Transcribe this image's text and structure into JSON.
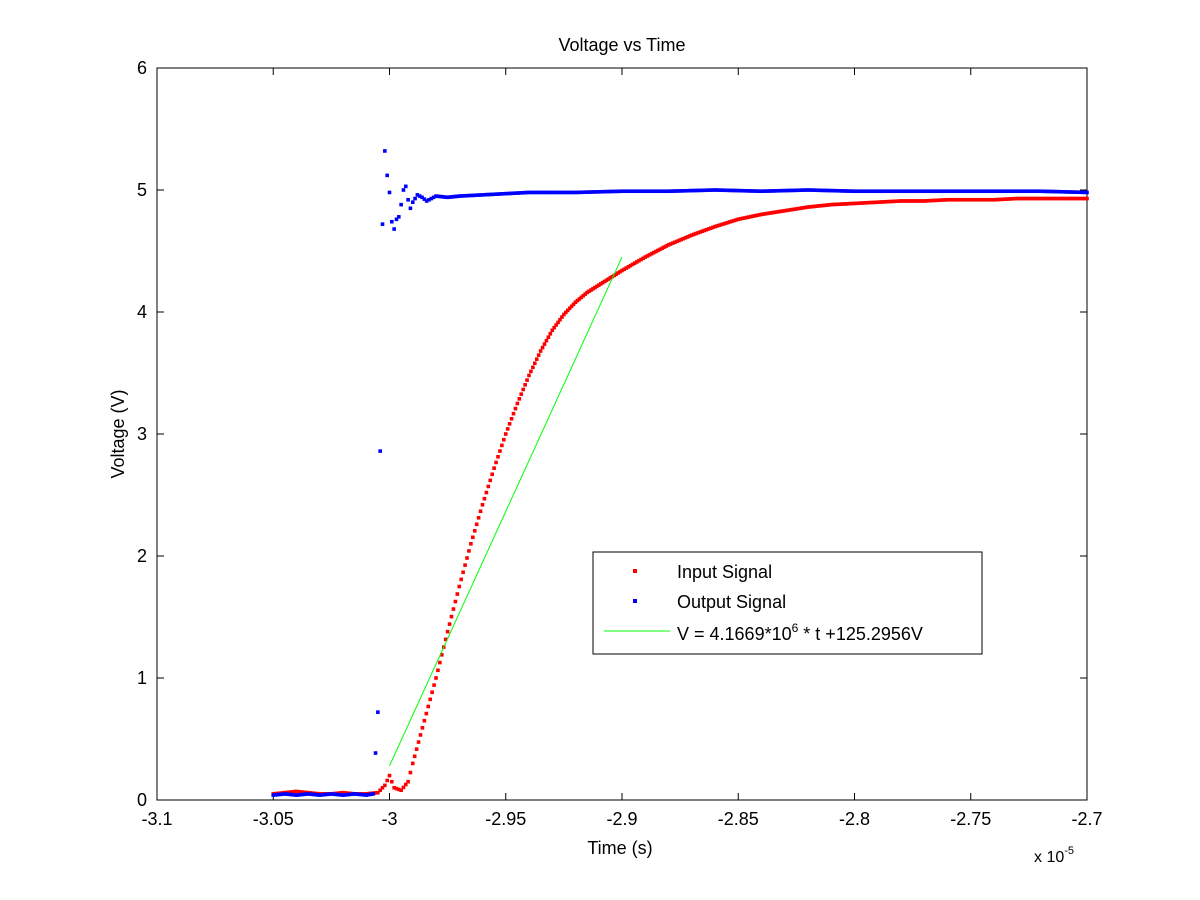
{
  "chart_data": {
    "type": "scatter",
    "title": "Voltage vs Time",
    "xlabel": "Time (s)",
    "ylabel": "Voltage (V)",
    "x_scale_label": {
      "base": "x 10",
      "exponent": "-5"
    },
    "xlim": [
      -3.1,
      -2.7
    ],
    "ylim": [
      0,
      6
    ],
    "xticks": [
      -3.1,
      -3.05,
      -3,
      -2.95,
      -2.9,
      -2.85,
      -2.8,
      -2.75,
      -2.7
    ],
    "xtick_labels": [
      "-3.1",
      "-3.05",
      "-3",
      "-2.95",
      "-2.9",
      "-2.85",
      "-2.8",
      "-2.75",
      "-2.7"
    ],
    "yticks": [
      0,
      1,
      2,
      3,
      4,
      5,
      6
    ],
    "ytick_labels": [
      "0",
      "1",
      "2",
      "3",
      "4",
      "5",
      "6"
    ],
    "grid": false,
    "legend_position": "center-right",
    "series": [
      {
        "name": "Input Signal",
        "kind": "points",
        "color": "#ff0000",
        "x": [
          -3.05,
          -3.045,
          -3.04,
          -3.035,
          -3.03,
          -3.025,
          -3.02,
          -3.015,
          -3.01,
          -3.005,
          -3.002,
          -3.0,
          -2.998,
          -2.995,
          -2.992,
          -2.99,
          -2.985,
          -2.98,
          -2.975,
          -2.97,
          -2.965,
          -2.96,
          -2.955,
          -2.95,
          -2.945,
          -2.94,
          -2.935,
          -2.93,
          -2.925,
          -2.92,
          -2.915,
          -2.91,
          -2.905,
          -2.9,
          -2.89,
          -2.88,
          -2.87,
          -2.86,
          -2.85,
          -2.84,
          -2.83,
          -2.82,
          -2.81,
          -2.8,
          -2.79,
          -2.78,
          -2.77,
          -2.76,
          -2.75,
          -2.74,
          -2.73,
          -2.72,
          -2.71,
          -2.7
        ],
        "y": [
          0.05,
          0.06,
          0.07,
          0.06,
          0.05,
          0.05,
          0.06,
          0.05,
          0.05,
          0.06,
          0.12,
          0.2,
          0.1,
          0.08,
          0.15,
          0.3,
          0.65,
          1.0,
          1.38,
          1.75,
          2.1,
          2.42,
          2.72,
          3.0,
          3.25,
          3.48,
          3.68,
          3.85,
          3.98,
          4.08,
          4.16,
          4.22,
          4.28,
          4.34,
          4.45,
          4.55,
          4.63,
          4.7,
          4.76,
          4.8,
          4.83,
          4.86,
          4.88,
          4.89,
          4.9,
          4.91,
          4.91,
          4.92,
          4.92,
          4.92,
          4.93,
          4.93,
          4.93,
          4.93
        ]
      },
      {
        "name": "Output Signal",
        "kind": "points",
        "color": "#0000ff",
        "x": [
          -3.05,
          -3.045,
          -3.04,
          -3.035,
          -3.03,
          -3.025,
          -3.02,
          -3.015,
          -3.01,
          -3.007,
          -3.005,
          -3.004,
          -3.003,
          -3.002,
          -3.001,
          -3.0,
          -2.999,
          -2.998,
          -2.997,
          -2.996,
          -2.995,
          -2.994,
          -2.993,
          -2.992,
          -2.991,
          -2.99,
          -2.988,
          -2.986,
          -2.984,
          -2.982,
          -2.98,
          -2.975,
          -2.97,
          -2.96,
          -2.95,
          -2.94,
          -2.93,
          -2.92,
          -2.9,
          -2.88,
          -2.86,
          -2.84,
          -2.82,
          -2.8,
          -2.78,
          -2.76,
          -2.74,
          -2.72,
          -2.7
        ],
        "y": [
          0.04,
          0.05,
          0.04,
          0.05,
          0.04,
          0.05,
          0.04,
          0.05,
          0.04,
          0.05,
          0.72,
          2.86,
          4.72,
          5.32,
          5.12,
          4.98,
          4.74,
          4.68,
          4.76,
          4.78,
          4.88,
          5.0,
          5.03,
          4.92,
          4.85,
          4.9,
          4.96,
          4.94,
          4.91,
          4.93,
          4.95,
          4.94,
          4.95,
          4.96,
          4.97,
          4.98,
          4.98,
          4.98,
          4.99,
          4.99,
          5.0,
          4.99,
          5.0,
          4.99,
          4.99,
          4.99,
          4.99,
          4.99,
          4.98
        ]
      },
      {
        "name": "V = 4.1669*10",
        "name_superscript": "6",
        "name_suffix": " * t +125.2956V",
        "kind": "line",
        "color": "#00ff00",
        "x": [
          -3.0,
          -2.9
        ],
        "y": [
          0.28,
          4.45
        ]
      }
    ]
  }
}
